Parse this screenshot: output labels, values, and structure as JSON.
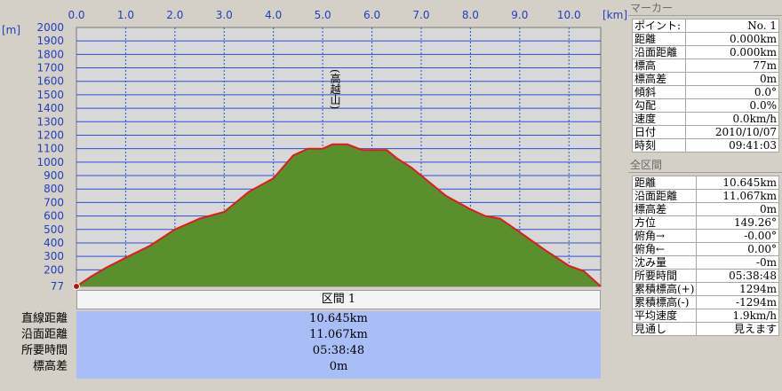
{
  "chart_data": {
    "type": "area",
    "x_unit": "[km]",
    "y_unit": "[m]",
    "xlim": [
      0,
      10.645
    ],
    "ylim": [
      77,
      2000
    ],
    "x_ticks": [
      "0.0",
      "1.0",
      "2.0",
      "3.0",
      "4.0",
      "5.0",
      "6.0",
      "7.0",
      "8.0",
      "9.0",
      "10.0"
    ],
    "y_ticks": [
      "2000",
      "1900",
      "1800",
      "1700",
      "1600",
      "1500",
      "1400",
      "1300",
      "1200",
      "1100",
      "1000",
      "900",
      "800",
      "700",
      "600",
      "500",
      "400",
      "300",
      "200",
      "77"
    ],
    "annotations": [
      {
        "label": "(高越山)",
        "x": 5.25,
        "y": 1133
      }
    ],
    "fill_color": "#5a8f2e",
    "line_color": "#e01b1b",
    "plot_bg": "#d8d8d8",
    "grid_color": "#2b4fd8",
    "series": [
      {
        "x": [
          0,
          0.3,
          0.6,
          1.0,
          1.5,
          2.0,
          2.5,
          3.0,
          3.5,
          4.0,
          4.4,
          4.7,
          5.0,
          5.2,
          5.5,
          5.8,
          6.0,
          6.3,
          6.5,
          6.8,
          7.0,
          7.5,
          8.0,
          8.3,
          8.6,
          9.0,
          9.5,
          10.0,
          10.3,
          10.645
        ],
        "y": [
          77,
          150,
          215,
          290,
          380,
          500,
          580,
          630,
          780,
          880,
          1050,
          1100,
          1100,
          1133,
          1133,
          1090,
          1090,
          1090,
          1030,
          960,
          900,
          750,
          650,
          600,
          580,
          480,
          350,
          230,
          190,
          77
        ]
      }
    ]
  },
  "section": {
    "label": "区間 1"
  },
  "summary": {
    "labels": [
      "直線距離",
      "沿面距離",
      "所要時間",
      "標高差"
    ],
    "values": [
      "10.645km",
      "11.067km",
      "05:38:48",
      "0m"
    ]
  },
  "marker_panel": {
    "title": "マーカー",
    "rows": [
      {
        "k": "ポイント:",
        "v": "No. 1"
      },
      {
        "k": "距離",
        "v": "0.000km"
      },
      {
        "k": "沿面距離",
        "v": "0.000km"
      },
      {
        "k": "標高",
        "v": "77m"
      },
      {
        "k": "標高差",
        "v": "0m"
      },
      {
        "k": "傾斜",
        "v": "0.0°"
      },
      {
        "k": "勾配",
        "v": "0.0%"
      },
      {
        "k": "速度",
        "v": "0.0km/h"
      },
      {
        "k": "日付",
        "v": "2010/10/07"
      },
      {
        "k": "時刻",
        "v": "09:41:03"
      }
    ]
  },
  "all_panel": {
    "title": "全区間",
    "rows": [
      {
        "k": "距離",
        "v": "10.645km"
      },
      {
        "k": "沿面距離",
        "v": "11.067km"
      },
      {
        "k": "標高差",
        "v": "0m"
      },
      {
        "k": "方位",
        "v": "149.26°"
      },
      {
        "k": "俯角→",
        "v": "-0.00°"
      },
      {
        "k": "俯角←",
        "v": "0.00°"
      },
      {
        "k": "沈み量",
        "v": "-0m"
      },
      {
        "k": "所要時間",
        "v": "05:38:48"
      },
      {
        "k": "累積標高(+)",
        "v": "1294m"
      },
      {
        "k": "累積標高(-)",
        "v": "-1294m"
      },
      {
        "k": "平均速度",
        "v": "1.9km/h"
      },
      {
        "k": "見通し",
        "v": "見えます"
      }
    ]
  }
}
